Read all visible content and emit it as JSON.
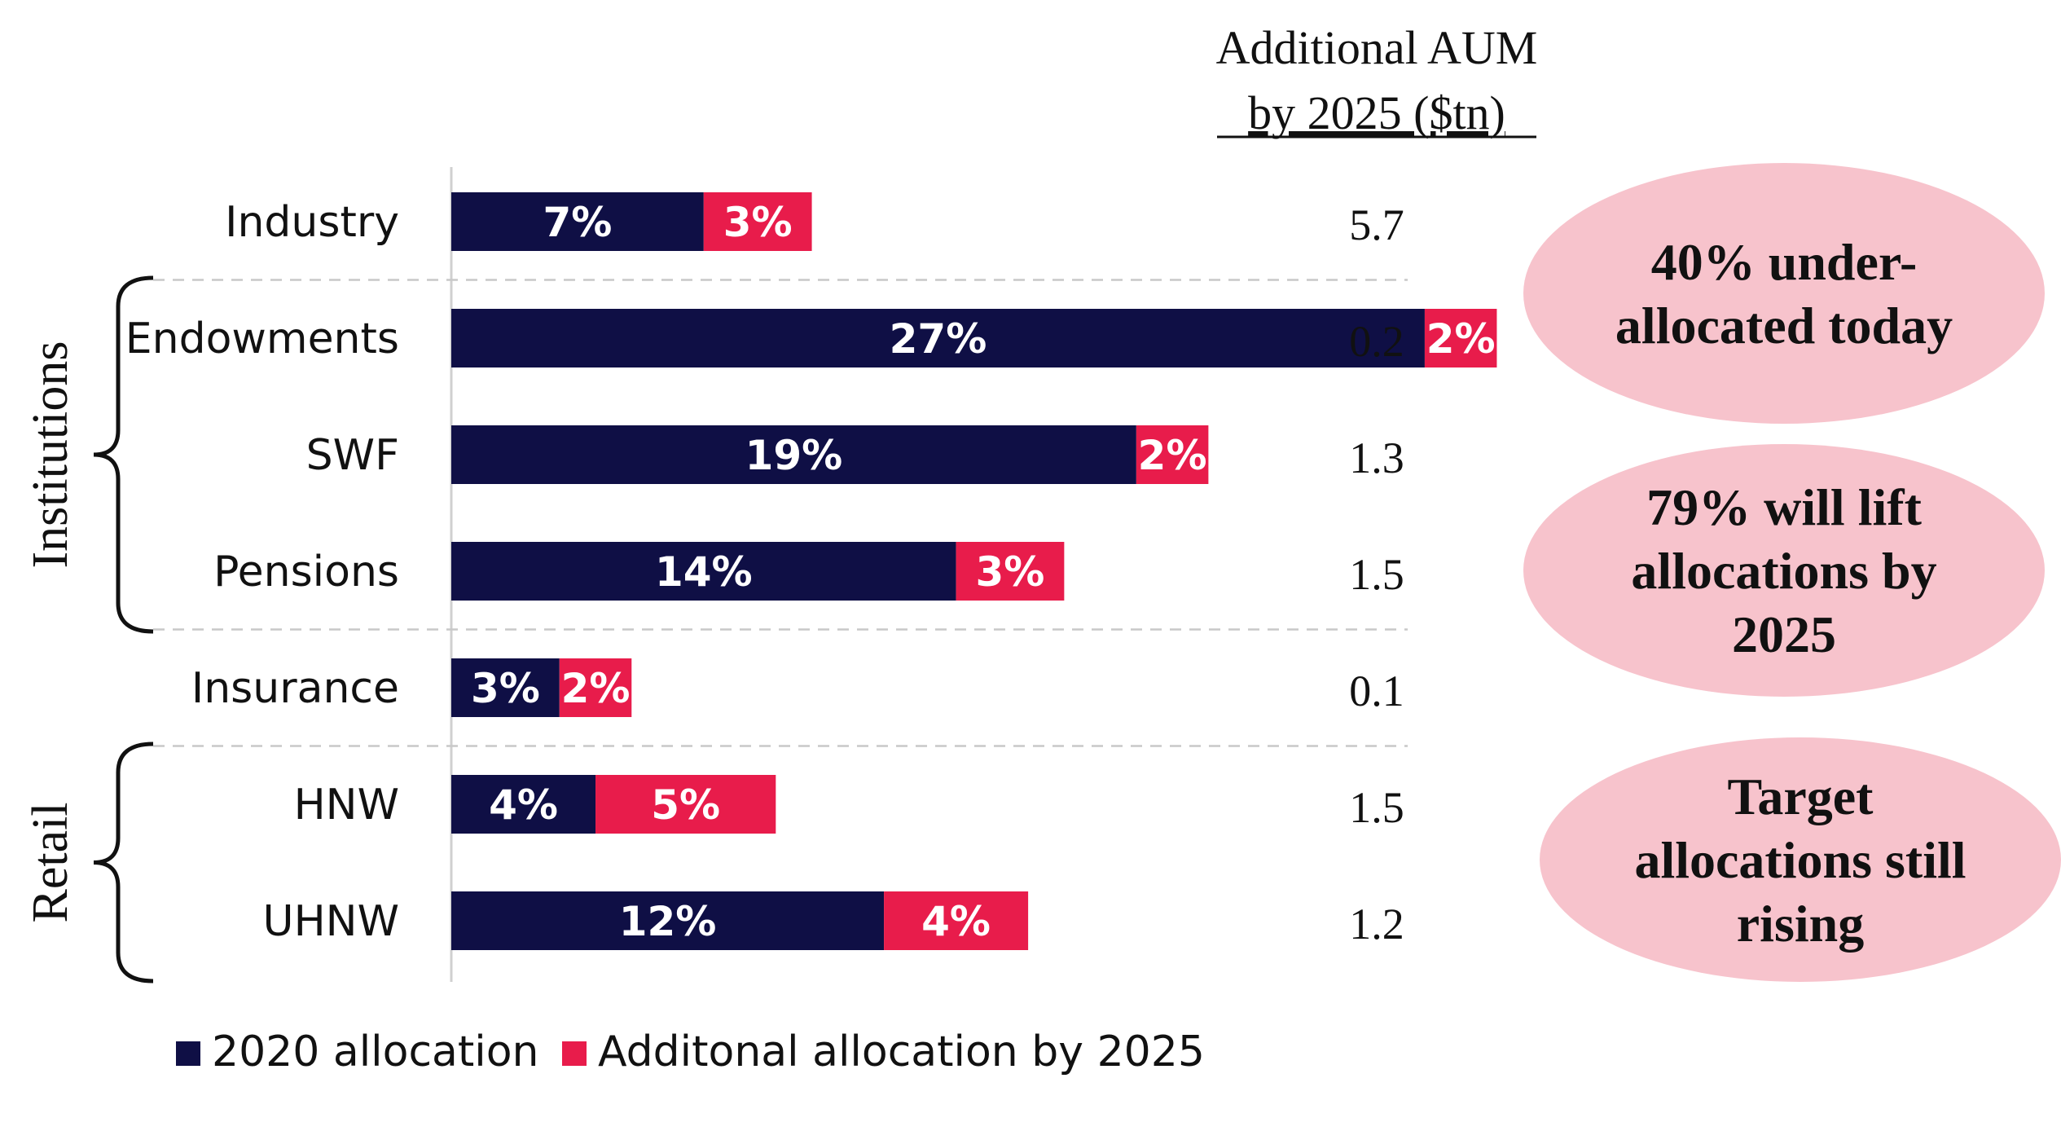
{
  "chart_data": {
    "type": "bar",
    "stacked": true,
    "orientation": "horizontal",
    "categories": [
      "Industry",
      "Endowments",
      "SWF",
      "Pensions",
      "Insurance",
      "HNW",
      "UHNW"
    ],
    "series": [
      {
        "name": "2020 allocation",
        "values": [
          7,
          27,
          19,
          14,
          3,
          4,
          12
        ],
        "labels": [
          "7%",
          "27%",
          "19%",
          "14%",
          "3%",
          "4%",
          "12%"
        ],
        "color": "#0f0f45"
      },
      {
        "name": "Additonal allocation by 2025",
        "values": [
          3,
          2,
          2,
          3,
          2,
          5,
          4
        ],
        "labels": [
          "3%",
          "2%",
          "2%",
          "3%",
          "2%",
          "5%",
          "4%"
        ],
        "color": "#e81c4b"
      }
    ],
    "xlim": [
      0,
      39
    ],
    "grid": false,
    "legend": "bottom",
    "aum_header": [
      "Additional AUM",
      "by 2025 ($tn)"
    ],
    "aum_values": [
      "5.7",
      "0.2",
      "1.3",
      "1.5",
      "0.1",
      "1.5",
      "1.2"
    ],
    "groups": [
      {
        "label": "Institutions",
        "categories": [
          "Endowments",
          "SWF",
          "Pensions"
        ]
      },
      {
        "label": "Retail",
        "categories": [
          "HNW",
          "UHNW"
        ]
      }
    ]
  },
  "callouts": [
    {
      "lines": [
        "40% under-",
        "allocated today"
      ]
    },
    {
      "lines": [
        "79% will lift",
        "allocations by",
        "2025"
      ]
    },
    {
      "lines": [
        "Target",
        "allocations still",
        "rising"
      ]
    }
  ],
  "colors": {
    "callout_fill": "#f7c3cc",
    "divider": "#c8c8c8",
    "axis": "#d0d0d0"
  }
}
